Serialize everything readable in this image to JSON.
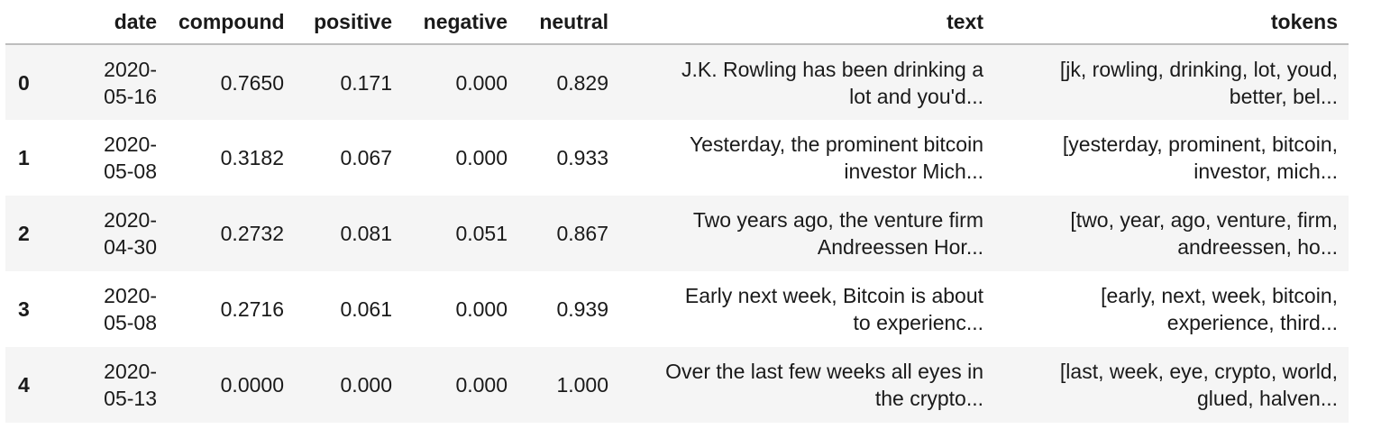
{
  "table": {
    "columns": [
      "",
      "date",
      "compound",
      "positive",
      "negative",
      "neutral",
      "text",
      "tokens"
    ],
    "rows": [
      {
        "index": "0",
        "date_year": "2020-",
        "date_md": "05-16",
        "compound": "0.7650",
        "positive": "0.171",
        "negative": "0.000",
        "neutral": "0.829",
        "text_l1": "J.K. Rowling has been drinking a",
        "text_l2": "lot and you'd...",
        "tokens_l1": "[jk, rowling, drinking, lot, youd,",
        "tokens_l2": "better, bel..."
      },
      {
        "index": "1",
        "date_year": "2020-",
        "date_md": "05-08",
        "compound": "0.3182",
        "positive": "0.067",
        "negative": "0.000",
        "neutral": "0.933",
        "text_l1": "Yesterday, the prominent bitcoin",
        "text_l2": "investor Mich...",
        "tokens_l1": "[yesterday, prominent, bitcoin,",
        "tokens_l2": "investor, mich..."
      },
      {
        "index": "2",
        "date_year": "2020-",
        "date_md": "04-30",
        "compound": "0.2732",
        "positive": "0.081",
        "negative": "0.051",
        "neutral": "0.867",
        "text_l1": "Two years ago, the venture firm",
        "text_l2": "Andreessen Hor...",
        "tokens_l1": "[two, year, ago, venture, firm,",
        "tokens_l2": "andreessen, ho..."
      },
      {
        "index": "3",
        "date_year": "2020-",
        "date_md": "05-08",
        "compound": "0.2716",
        "positive": "0.061",
        "negative": "0.000",
        "neutral": "0.939",
        "text_l1": "Early next week, Bitcoin is about",
        "text_l2": "to experienc...",
        "tokens_l1": "[early, next, week, bitcoin,",
        "tokens_l2": "experience, third..."
      },
      {
        "index": "4",
        "date_year": "2020-",
        "date_md": "05-13",
        "compound": "0.0000",
        "positive": "0.000",
        "negative": "0.000",
        "neutral": "1.000",
        "text_l1": "Over the last few weeks all eyes in",
        "text_l2": "the crypto...",
        "tokens_l1": "[last, week, eye, crypto, world,",
        "tokens_l2": "glued, halven..."
      }
    ]
  }
}
